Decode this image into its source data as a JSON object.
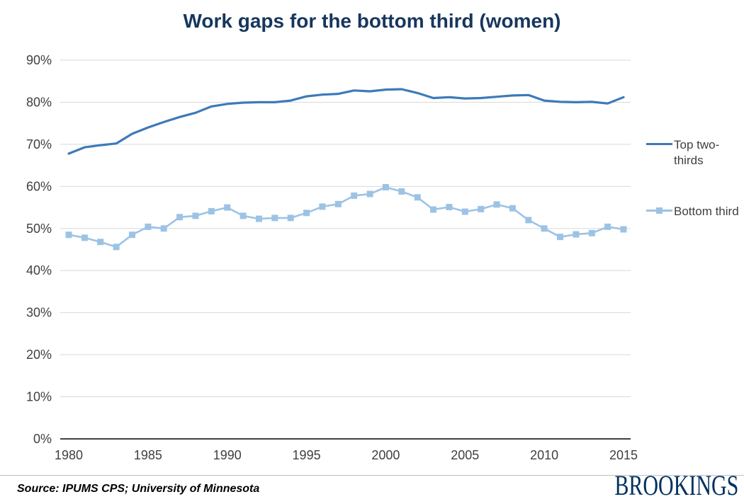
{
  "chart_data": {
    "type": "line",
    "title": "Work gaps for the bottom third (women)",
    "xlabel": "",
    "ylabel": "",
    "x": [
      1980,
      1981,
      1982,
      1983,
      1984,
      1985,
      1986,
      1987,
      1988,
      1989,
      1990,
      1991,
      1992,
      1993,
      1994,
      1995,
      1996,
      1997,
      1998,
      1999,
      2000,
      2001,
      2002,
      2003,
      2004,
      2005,
      2006,
      2007,
      2008,
      2009,
      2010,
      2011,
      2012,
      2013,
      2014,
      2015
    ],
    "series": [
      {
        "name": "Top two-thirds",
        "color": "#3d7ab8",
        "marker": "none",
        "values": [
          67.8,
          69.3,
          69.8,
          70.2,
          72.5,
          74.0,
          75.3,
          76.5,
          77.5,
          79.0,
          79.6,
          79.9,
          80.0,
          80.0,
          80.4,
          81.4,
          81.8,
          82.0,
          82.8,
          82.6,
          83.0,
          83.1,
          82.2,
          81.0,
          81.2,
          80.9,
          81.0,
          81.3,
          81.6,
          81.7,
          80.4,
          80.1,
          80.0,
          80.1,
          79.7,
          81.2
        ]
      },
      {
        "name": "Bottom third",
        "color": "#9cc3e5",
        "marker": "square",
        "values": [
          48.5,
          47.8,
          46.8,
          45.6,
          48.5,
          50.4,
          50.0,
          52.7,
          53.0,
          54.1,
          55.0,
          53.0,
          52.3,
          52.5,
          52.5,
          53.7,
          55.2,
          55.8,
          57.8,
          58.2,
          59.8,
          58.8,
          57.4,
          54.5,
          55.1,
          54.0,
          54.6,
          55.7,
          54.8,
          52.0,
          50.0,
          48.0,
          48.6,
          48.9,
          50.4,
          49.8
        ]
      }
    ],
    "ylim": [
      0,
      90
    ],
    "yticks": [
      0,
      10,
      20,
      30,
      40,
      50,
      60,
      70,
      80,
      90
    ],
    "ytick_suffix": "%",
    "xticks": [
      1980,
      1985,
      1990,
      1995,
      2000,
      2005,
      2010,
      2015
    ],
    "grid": "horizontal",
    "legend_position": "right"
  },
  "footer": {
    "source": "Source: IPUMS CPS; University of Minnesota",
    "logo": "BROOKINGS"
  },
  "colors": {
    "title": "#17365d",
    "top_line": "#3d7ab8",
    "bottom_line": "#9cc3e5",
    "grid": "#d9d9d9",
    "axis_line": "#000000",
    "axis_text": "#404040",
    "legend_text": "#404040",
    "logo": "#00305e"
  }
}
